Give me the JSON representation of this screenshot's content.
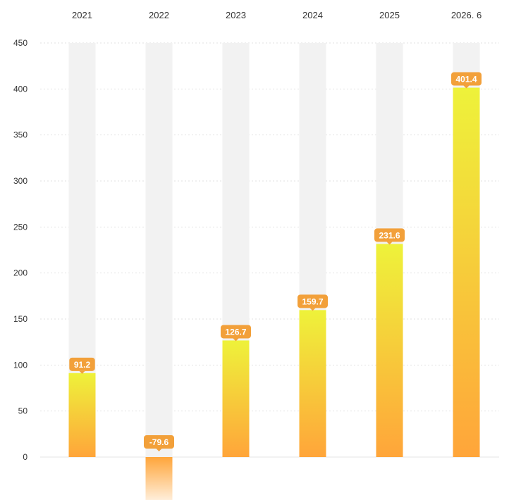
{
  "chart_data": {
    "type": "bar",
    "categories": [
      "2021",
      "2022",
      "2023",
      "2024",
      "2025",
      "2026. 6"
    ],
    "values": [
      91.2,
      -79.6,
      126.7,
      159.7,
      231.6,
      401.4
    ],
    "data_labels": [
      "91.2",
      "-79.6",
      "126.7",
      "159.7",
      "231.6",
      "401.4"
    ],
    "ylim": [
      -50,
      450
    ],
    "yticks": [
      0,
      50,
      100,
      150,
      200,
      250,
      300,
      350,
      400,
      450
    ],
    "category_axis_position": "top",
    "grid": true,
    "colors": {
      "bar_top": "#EEF23A",
      "bar_bottom": "#FFA53A",
      "label_bg": "#F2A03A",
      "track": "#F2F2F2",
      "grid": "#E2E2E2"
    }
  }
}
